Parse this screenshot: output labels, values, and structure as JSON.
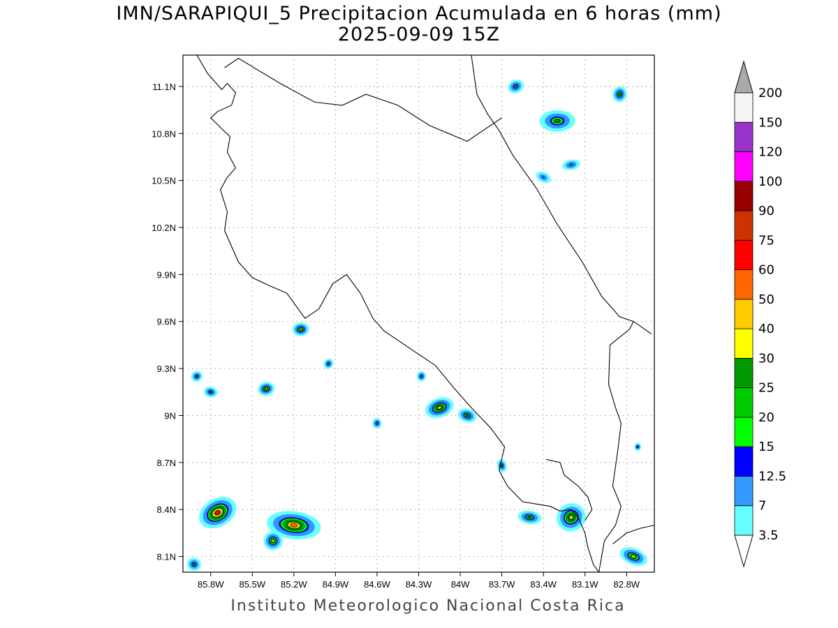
{
  "title": {
    "line1": "IMN/SARAPIQUI_5 Precipitacion Acumulada en 6 horas (mm)",
    "line2": "2025-09-09 15Z"
  },
  "footer": "Instituto Meteorologico Nacional Costa Rica",
  "map": {
    "lon_range": [
      -86.0,
      -82.6
    ],
    "lat_range": [
      8.0,
      11.3
    ],
    "lon_ticks": [
      {
        "value": -85.8,
        "label": "85.8W"
      },
      {
        "value": -85.5,
        "label": "85.5W"
      },
      {
        "value": -85.2,
        "label": "85.2W"
      },
      {
        "value": -84.9,
        "label": "84.9W"
      },
      {
        "value": -84.6,
        "label": "84.6W"
      },
      {
        "value": -84.3,
        "label": "84.3W"
      },
      {
        "value": -84.0,
        "label": "84W"
      },
      {
        "value": -83.7,
        "label": "83.7W"
      },
      {
        "value": -83.4,
        "label": "83.4W"
      },
      {
        "value": -83.1,
        "label": "83.1W"
      },
      {
        "value": -82.8,
        "label": "82.8W"
      }
    ],
    "lat_ticks": [
      {
        "value": 8.1,
        "label": "8.1N"
      },
      {
        "value": 8.4,
        "label": "8.4N"
      },
      {
        "value": 8.7,
        "label": "8.7N"
      },
      {
        "value": 9.0,
        "label": "9N"
      },
      {
        "value": 9.3,
        "label": "9.3N"
      },
      {
        "value": 9.6,
        "label": "9.6N"
      },
      {
        "value": 9.9,
        "label": "9.9N"
      },
      {
        "value": 10.2,
        "label": "10.2N"
      },
      {
        "value": 10.5,
        "label": "10.5N"
      },
      {
        "value": 10.8,
        "label": "10.8N"
      },
      {
        "value": 11.1,
        "label": "11.1N"
      }
    ],
    "grid": true,
    "coastline": [
      [
        -85.9,
        11.3
      ],
      [
        -85.82,
        11.18
      ],
      [
        -85.72,
        11.08
      ],
      [
        -85.68,
        11.12
      ],
      [
        -85.62,
        11.06
      ],
      [
        -85.65,
        10.98
      ],
      [
        -85.75,
        10.94
      ],
      [
        -85.8,
        10.9
      ],
      [
        -85.72,
        10.83
      ],
      [
        -85.66,
        10.78
      ],
      [
        -85.68,
        10.68
      ],
      [
        -85.62,
        10.58
      ],
      [
        -85.68,
        10.52
      ],
      [
        -85.73,
        10.44
      ],
      [
        -85.68,
        10.3
      ],
      [
        -85.7,
        10.18
      ],
      [
        -85.6,
        9.98
      ],
      [
        -85.5,
        9.88
      ],
      [
        -85.38,
        9.83
      ],
      [
        -85.25,
        9.78
      ],
      [
        -85.12,
        9.62
      ],
      [
        -85.02,
        9.68
      ],
      [
        -84.92,
        9.84
      ],
      [
        -84.82,
        9.9
      ],
      [
        -84.72,
        9.78
      ],
      [
        -84.63,
        9.62
      ],
      [
        -84.55,
        9.54
      ],
      [
        -84.35,
        9.42
      ],
      [
        -84.18,
        9.32
      ],
      [
        -84.05,
        9.18
      ],
      [
        -83.92,
        9.05
      ],
      [
        -83.78,
        8.92
      ],
      [
        -83.68,
        8.8
      ],
      [
        -83.72,
        8.65
      ],
      [
        -83.66,
        8.55
      ],
      [
        -83.55,
        8.45
      ],
      [
        -83.35,
        8.42
      ],
      [
        -83.28,
        8.39
      ],
      [
        -83.2,
        8.4
      ],
      [
        -83.15,
        8.35
      ],
      [
        -83.1,
        8.25
      ],
      [
        -83.08,
        8.16
      ],
      [
        -83.04,
        8.05
      ],
      [
        -83.0,
        8.0
      ]
    ],
    "gulf_outline": [
      [
        -83.38,
        8.72
      ],
      [
        -83.28,
        8.7
      ],
      [
        -83.25,
        8.62
      ],
      [
        -83.15,
        8.55
      ],
      [
        -83.08,
        8.48
      ],
      [
        -83.05,
        8.4
      ],
      [
        -83.1,
        8.33
      ]
    ],
    "caribbean_coast": [
      [
        -83.92,
        11.3
      ],
      [
        -83.88,
        11.05
      ],
      [
        -83.8,
        10.92
      ],
      [
        -83.72,
        10.82
      ],
      [
        -83.62,
        10.66
      ],
      [
        -83.45,
        10.45
      ],
      [
        -83.3,
        10.22
      ],
      [
        -83.12,
        9.98
      ],
      [
        -82.98,
        9.76
      ],
      [
        -82.85,
        9.63
      ],
      [
        -82.75,
        9.6
      ],
      [
        -82.62,
        9.52
      ]
    ],
    "panama_border": [
      [
        -82.75,
        9.6
      ],
      [
        -82.78,
        9.55
      ],
      [
        -82.92,
        9.45
      ],
      [
        -82.93,
        9.2
      ],
      [
        -82.88,
        9.05
      ],
      [
        -82.84,
        8.95
      ],
      [
        -82.86,
        8.8
      ],
      [
        -82.9,
        8.55
      ],
      [
        -82.84,
        8.42
      ],
      [
        -82.88,
        8.3
      ],
      [
        -82.96,
        8.2
      ],
      [
        -83.0,
        8.0
      ]
    ],
    "nicaragua_border": [
      [
        -85.7,
        11.22
      ],
      [
        -85.6,
        11.28
      ],
      [
        -85.3,
        11.12
      ],
      [
        -85.05,
        11.0
      ],
      [
        -84.85,
        10.98
      ],
      [
        -84.68,
        11.05
      ],
      [
        -84.45,
        10.98
      ],
      [
        -84.22,
        10.85
      ],
      [
        -83.95,
        10.75
      ],
      [
        -83.7,
        10.9
      ]
    ],
    "panama_coast": [
      [
        -82.9,
        8.18
      ],
      [
        -82.8,
        8.25
      ],
      [
        -82.7,
        8.28
      ],
      [
        -82.6,
        8.3
      ]
    ]
  },
  "colorbar": {
    "levels": [
      "3.5",
      "7",
      "12.5",
      "15",
      "20",
      "25",
      "30",
      "40",
      "50",
      "60",
      "75",
      "90",
      "100",
      "120",
      "150",
      "200"
    ],
    "colors": [
      "#66ffff",
      "#3399ff",
      "#0000ff",
      "#00ff00",
      "#00cc00",
      "#009900",
      "#ffff00",
      "#ffcc00",
      "#ff6600",
      "#ff0000",
      "#cc3300",
      "#990000",
      "#ff00ff",
      "#9933cc",
      "#f5f5f5"
    ],
    "over_color": "#aaaaaa",
    "under_color": "#ffffff"
  },
  "precip_cells": [
    {
      "lon": -85.75,
      "lat": 8.38,
      "rx": 0.16,
      "ry": 0.1,
      "peak": 60
    },
    {
      "lon": -85.2,
      "lat": 8.3,
      "rx": 0.22,
      "ry": 0.1,
      "peak": 50
    },
    {
      "lon": -85.35,
      "lat": 8.2,
      "rx": 0.08,
      "ry": 0.07,
      "peak": 30
    },
    {
      "lon": -85.92,
      "lat": 8.05,
      "rx": 0.06,
      "ry": 0.05,
      "peak": 20
    },
    {
      "lon": -85.15,
      "lat": 9.55,
      "rx": 0.07,
      "ry": 0.05,
      "peak": 30
    },
    {
      "lon": -85.9,
      "lat": 9.25,
      "rx": 0.05,
      "ry": 0.04,
      "peak": 20
    },
    {
      "lon": -85.8,
      "lat": 9.15,
      "rx": 0.06,
      "ry": 0.04,
      "peak": 20
    },
    {
      "lon": -85.4,
      "lat": 9.17,
      "rx": 0.07,
      "ry": 0.05,
      "peak": 30
    },
    {
      "lon": -84.95,
      "lat": 9.33,
      "rx": 0.04,
      "ry": 0.04,
      "peak": 20
    },
    {
      "lon": -84.28,
      "lat": 9.25,
      "rx": 0.04,
      "ry": 0.04,
      "peak": 20
    },
    {
      "lon": -84.15,
      "lat": 9.05,
      "rx": 0.12,
      "ry": 0.07,
      "peak": 40
    },
    {
      "lon": -83.95,
      "lat": 9.0,
      "rx": 0.08,
      "ry": 0.05,
      "peak": 25
    },
    {
      "lon": -84.6,
      "lat": 8.95,
      "rx": 0.04,
      "ry": 0.04,
      "peak": 20
    },
    {
      "lon": -83.2,
      "lat": 8.35,
      "rx": 0.12,
      "ry": 0.1,
      "peak": 40
    },
    {
      "lon": -83.5,
      "lat": 8.35,
      "rx": 0.1,
      "ry": 0.05,
      "peak": 25
    },
    {
      "lon": -83.7,
      "lat": 8.68,
      "rx": 0.04,
      "ry": 0.05,
      "peak": 20
    },
    {
      "lon": -82.75,
      "lat": 8.1,
      "rx": 0.12,
      "ry": 0.06,
      "peak": 30
    },
    {
      "lon": -83.3,
      "lat": 10.88,
      "rx": 0.15,
      "ry": 0.08,
      "peak": 25
    },
    {
      "lon": -83.6,
      "lat": 11.1,
      "rx": 0.07,
      "ry": 0.05,
      "peak": 20
    },
    {
      "lon": -82.85,
      "lat": 11.05,
      "rx": 0.06,
      "ry": 0.06,
      "peak": 25
    },
    {
      "lon": -83.2,
      "lat": 10.6,
      "rx": 0.08,
      "ry": 0.04,
      "peak": 15
    },
    {
      "lon": -83.4,
      "lat": 10.52,
      "rx": 0.07,
      "ry": 0.04,
      "peak": 12.5
    },
    {
      "lon": -82.72,
      "lat": 8.8,
      "rx": 0.03,
      "ry": 0.03,
      "peak": 20
    }
  ]
}
